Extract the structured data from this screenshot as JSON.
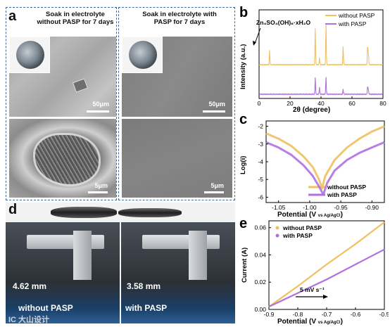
{
  "panel_a": {
    "label": "a",
    "left_caption": "Soak in electrolyte without PASP for 7 days",
    "right_caption": "Soak in electrolyte with PASP for 7 days",
    "scale_top_left": "50μm",
    "scale_top_right": "50μm",
    "scale_bottom_left": "5μm",
    "scale_bottom_right": "5μm"
  },
  "panel_d": {
    "label": "d",
    "left_value": "4.62 mm",
    "right_value": "3.58 mm",
    "left_text": "without PASP",
    "right_text": "with PASP",
    "watermark": "IC 大山设计"
  },
  "colors": {
    "without": "#f0c060",
    "with": "#b070e0",
    "dash": "#3a6ea5"
  },
  "chart_data": [
    {
      "panel": "b",
      "type": "line",
      "xlabel": "2θ (degree)",
      "ylabel": "Intensity (a.u.)",
      "xlim": [
        0,
        80
      ],
      "xticks": [
        0,
        20,
        40,
        60,
        80
      ],
      "annotation": "Zn₄SO₄(OH)₆·xH₂O",
      "legend_position": "top-right",
      "series": [
        {
          "name": "without PASP",
          "baseline": 0.22,
          "peaks": [
            [
              6.8,
              0.35
            ],
            [
              36.3,
              0.9
            ],
            [
              39.0,
              0.18
            ],
            [
              43.2,
              1.0
            ],
            [
              54.3,
              0.45
            ],
            [
              70.1,
              0.5
            ],
            [
              70.6,
              0.3
            ]
          ]
        },
        {
          "name": "with PASP",
          "baseline": 0.0,
          "peaks": [
            [
              36.3,
              0.7
            ],
            [
              39.0,
              0.3
            ],
            [
              43.2,
              0.72
            ],
            [
              54.3,
              0.22
            ],
            [
              70.1,
              0.35
            ],
            [
              70.6,
              0.2
            ]
          ]
        }
      ]
    },
    {
      "panel": "c",
      "type": "line",
      "xlabel": "Potential (V vs Ag/AgCl)",
      "ylabel": "Log(i)",
      "xlim": [
        -1.07,
        -0.88
      ],
      "ylim": [
        -6.3,
        -1.7
      ],
      "xticks": [
        -1.05,
        -1.0,
        -0.95,
        -0.9
      ],
      "yticks": [
        -2,
        -3,
        -4,
        -5,
        -6
      ],
      "legend_position": "bottom-right",
      "series": [
        {
          "name": "without PASP",
          "x": [
            -1.07,
            -1.05,
            -1.03,
            -1.01,
            -0.995,
            -0.985,
            -0.98,
            -0.975,
            -0.96,
            -0.94,
            -0.92,
            -0.9,
            -0.88
          ],
          "y": [
            -2.4,
            -2.7,
            -3.1,
            -3.7,
            -4.3,
            -5.0,
            -5.5,
            -4.8,
            -3.9,
            -3.2,
            -2.7,
            -2.3,
            -2.0
          ]
        },
        {
          "name": "with PASP",
          "x": [
            -1.07,
            -1.05,
            -1.03,
            -1.01,
            -0.995,
            -0.985,
            -0.978,
            -0.972,
            -0.96,
            -0.94,
            -0.92,
            -0.9,
            -0.88
          ],
          "y": [
            -2.9,
            -3.2,
            -3.6,
            -4.2,
            -4.8,
            -5.4,
            -5.85,
            -5.2,
            -4.5,
            -3.9,
            -3.5,
            -3.2,
            -2.9
          ]
        }
      ]
    },
    {
      "panel": "e",
      "type": "line",
      "xlabel": "Potential (V vs Ag/AgCl)",
      "ylabel": "Current (A)",
      "xlim": [
        -0.9,
        -0.5
      ],
      "ylim": [
        0,
        0.065
      ],
      "xticks": [
        -0.9,
        -0.8,
        -0.7,
        -0.6,
        -0.5
      ],
      "yticks": [
        0.0,
        0.02,
        0.04,
        0.06
      ],
      "annotation": "5 mV s⁻¹",
      "legend_position": "top-left",
      "series": [
        {
          "name": "without PASP",
          "x": [
            -0.9,
            -0.8,
            -0.7,
            -0.6,
            -0.5
          ],
          "y": [
            0.002,
            0.017,
            0.033,
            0.048,
            0.064
          ]
        },
        {
          "name": "with PASP",
          "x": [
            -0.9,
            -0.8,
            -0.7,
            -0.6,
            -0.5
          ],
          "y": [
            0.002,
            0.012,
            0.022,
            0.033,
            0.044
          ]
        }
      ]
    }
  ]
}
